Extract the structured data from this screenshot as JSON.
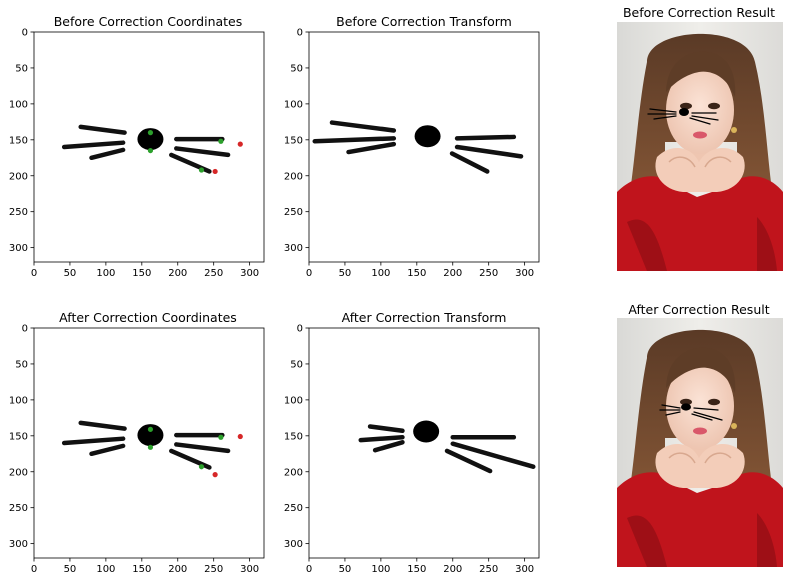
{
  "figure": {
    "panels": [
      {
        "key": "p1",
        "title": "Before Correction Coordinates"
      },
      {
        "key": "p2",
        "title": "Before Correction Transform"
      },
      {
        "key": "p3",
        "title": "Before Correction Result"
      },
      {
        "key": "p4",
        "title": "After Correction Coordinates"
      },
      {
        "key": "p5",
        "title": "After Correction Transform"
      },
      {
        "key": "p6",
        "title": "After Correction Result"
      }
    ]
  },
  "chart_data": [
    {
      "type": "scatter",
      "title": "Before Correction Coordinates",
      "xlim": [
        0,
        320
      ],
      "ylim": [
        320,
        0
      ],
      "xticks": [
        0,
        50,
        100,
        150,
        200,
        250,
        300
      ],
      "yticks": [
        0,
        50,
        100,
        150,
        200,
        250,
        300
      ],
      "series": [
        {
          "color": "#2ca02c",
          "points": [
            [
              162,
              140
            ],
            [
              162,
              165
            ],
            [
              260,
              152
            ],
            [
              233,
              192
            ]
          ]
        },
        {
          "color": "#d62728",
          "points": [
            [
              287,
              156
            ],
            [
              252,
              194
            ]
          ]
        }
      ],
      "whiskers": {
        "nose": [
          162,
          149
        ],
        "strokes": [
          [
            [
              65,
              132
            ],
            [
              126,
              140
            ]
          ],
          [
            [
              42,
              160
            ],
            [
              124,
              154
            ]
          ],
          [
            [
              80,
              175
            ],
            [
              124,
              164
            ]
          ],
          [
            [
              198,
              149
            ],
            [
              262,
              149
            ]
          ],
          [
            [
              198,
              162
            ],
            [
              270,
              171
            ]
          ],
          [
            [
              191,
              171
            ],
            [
              244,
              194
            ]
          ]
        ]
      }
    },
    {
      "type": "scatter",
      "title": "Before Correction Transform",
      "xlim": [
        0,
        320
      ],
      "ylim": [
        320,
        0
      ],
      "xticks": [
        0,
        50,
        100,
        150,
        200,
        250,
        300
      ],
      "yticks": [
        0,
        50,
        100,
        150,
        200,
        250,
        300
      ],
      "series": [],
      "whiskers": {
        "nose": [
          165,
          145
        ],
        "strokes": [
          [
            [
              32,
              126
            ],
            [
              118,
              137
            ]
          ],
          [
            [
              8,
              152
            ],
            [
              118,
              148
            ]
          ],
          [
            [
              55,
              167
            ],
            [
              118,
              156
            ]
          ],
          [
            [
              206,
              148
            ],
            [
              285,
              146
            ]
          ],
          [
            [
              206,
              160
            ],
            [
              295,
              173
            ]
          ],
          [
            [
              199,
              169
            ],
            [
              248,
              194
            ]
          ]
        ]
      }
    },
    {
      "type": "scatter",
      "title": "After Correction Coordinates",
      "xlim": [
        0,
        320
      ],
      "ylim": [
        320,
        0
      ],
      "xticks": [
        0,
        50,
        100,
        150,
        200,
        250,
        300
      ],
      "yticks": [
        0,
        50,
        100,
        150,
        200,
        250,
        300
      ],
      "series": [
        {
          "color": "#2ca02c",
          "points": [
            [
              162,
              141
            ],
            [
              162,
              166
            ],
            [
              260,
              152
            ],
            [
              233,
              193
            ]
          ]
        },
        {
          "color": "#d62728",
          "points": [
            [
              287,
              151
            ],
            [
              252,
              204
            ]
          ]
        }
      ],
      "whiskers": {
        "nose": [
          162,
          149
        ],
        "strokes": [
          [
            [
              65,
              132
            ],
            [
              126,
              140
            ]
          ],
          [
            [
              42,
              160
            ],
            [
              124,
              154
            ]
          ],
          [
            [
              80,
              175
            ],
            [
              124,
              164
            ]
          ],
          [
            [
              198,
              149
            ],
            [
              262,
              149
            ]
          ],
          [
            [
              198,
              162
            ],
            [
              270,
              171
            ]
          ],
          [
            [
              191,
              171
            ],
            [
              244,
              194
            ]
          ]
        ]
      }
    },
    {
      "type": "scatter",
      "title": "After Correction Transform",
      "xlim": [
        0,
        320
      ],
      "ylim": [
        320,
        0
      ],
      "xticks": [
        0,
        50,
        100,
        150,
        200,
        250,
        300
      ],
      "yticks": [
        0,
        50,
        100,
        150,
        200,
        250,
        300
      ],
      "series": [],
      "whiskers": {
        "nose": [
          163,
          144
        ],
        "strokes": [
          [
            [
              85,
              137
            ],
            [
              130,
              143
            ]
          ],
          [
            [
              72,
              156
            ],
            [
              130,
              152
            ]
          ],
          [
            [
              92,
              170
            ],
            [
              130,
              159
            ]
          ],
          [
            [
              200,
              152
            ],
            [
              285,
              152
            ]
          ],
          [
            [
              200,
              161
            ],
            [
              312,
              193
            ]
          ],
          [
            [
              192,
              171
            ],
            [
              252,
              199
            ]
          ]
        ]
      }
    }
  ]
}
